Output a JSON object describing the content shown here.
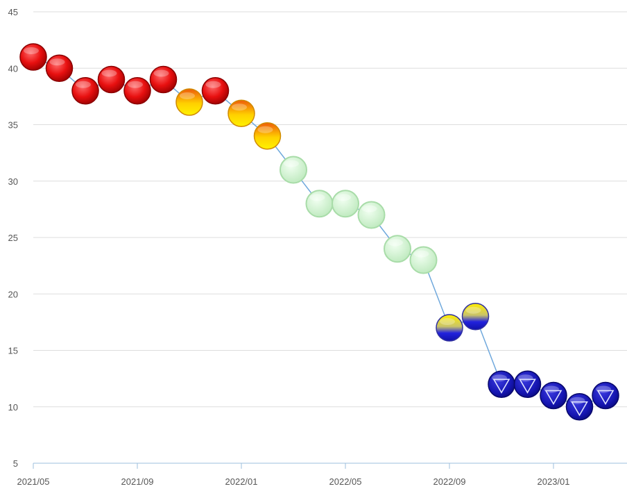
{
  "chart_data": {
    "type": "line",
    "x_tick_labels": [
      "2021/05",
      "2021/09",
      "2022/01",
      "2022/05",
      "2022/09",
      "2023/01"
    ],
    "y_tick_labels": [
      "5",
      "10",
      "15",
      "20",
      "25",
      "30",
      "35",
      "40",
      "45"
    ],
    "ylim": [
      5,
      45
    ],
    "grid": true,
    "x": [
      "2021/05",
      "2021/06",
      "2021/07",
      "2021/08",
      "2021/09",
      "2021/10",
      "2021/11",
      "2021/12",
      "2022/01",
      "2022/02",
      "2022/03",
      "2022/04",
      "2022/05",
      "2022/06",
      "2022/07",
      "2022/08",
      "2022/09",
      "2022/10",
      "2022/11",
      "2022/12",
      "2023/01",
      "2023/02",
      "2023/03"
    ],
    "values": [
      41,
      40,
      38,
      39,
      38,
      39,
      37,
      38,
      36,
      34,
      31,
      28,
      28,
      27,
      24,
      23,
      17,
      18,
      12,
      12,
      11,
      10,
      11
    ],
    "marker_styles": [
      "red",
      "red",
      "red",
      "red",
      "red",
      "red",
      "orange",
      "red",
      "orange",
      "orange",
      "green",
      "green",
      "green",
      "green",
      "green",
      "green",
      "yellow-blue",
      "yellow-blue",
      "blue-down",
      "blue-down",
      "blue-down",
      "blue-down",
      "blue-down"
    ],
    "colors": {
      "line": "#6fa8dc",
      "grid": "#dddddd",
      "red": "#e81010",
      "orange": "#f2a400",
      "yellow": "#ffee00",
      "green": "#ccf2cc",
      "blue": "#1a1ab8"
    }
  }
}
